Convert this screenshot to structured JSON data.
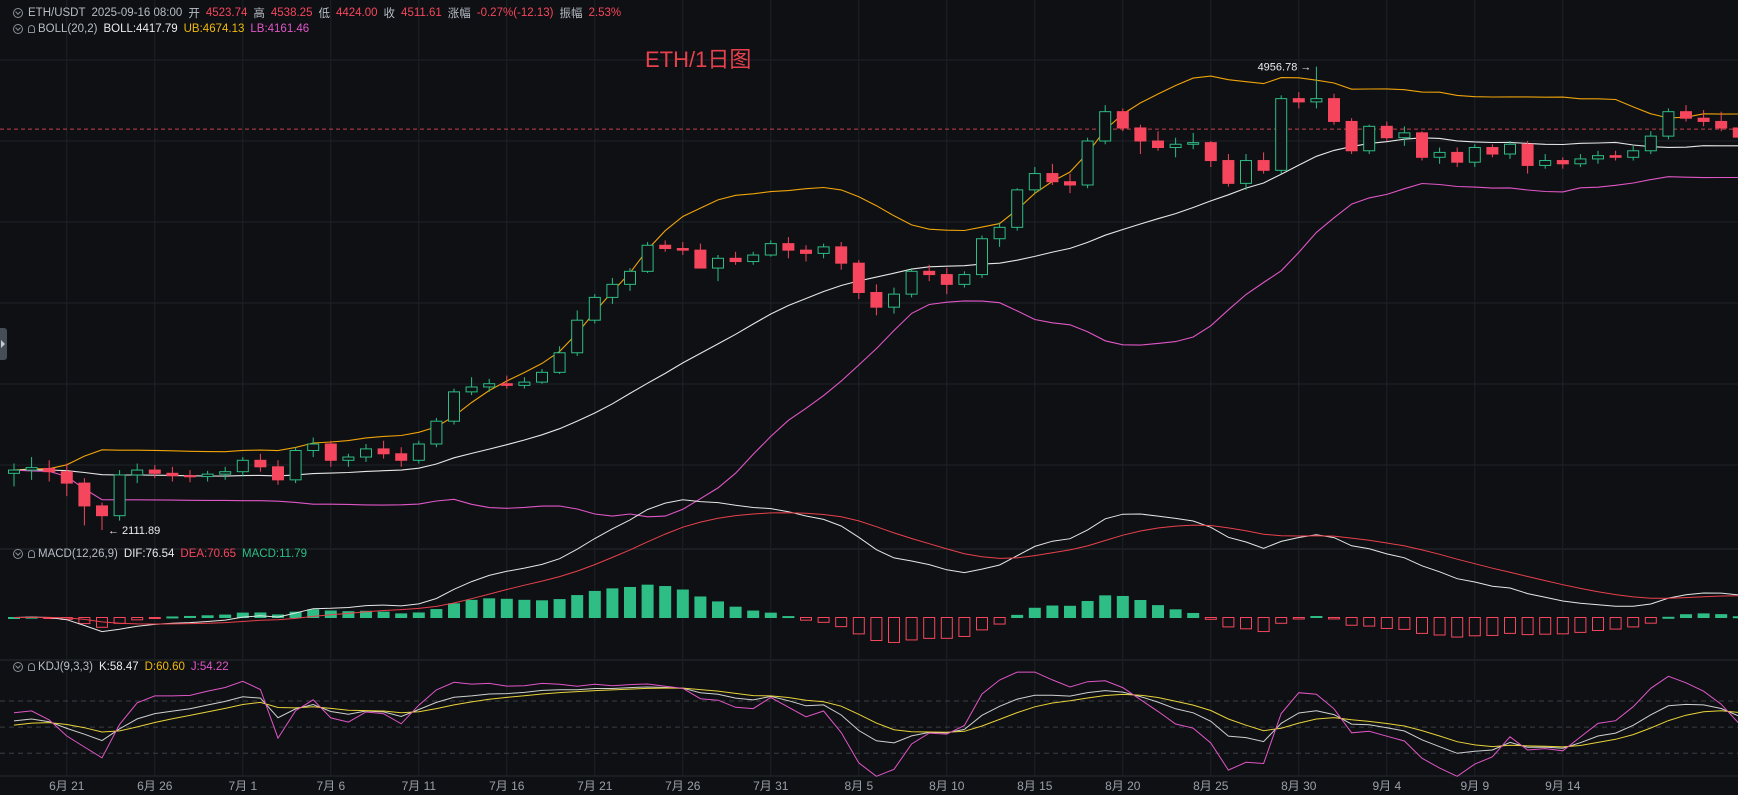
{
  "main": {
    "title": "ETH/1日图",
    "header": {
      "symbol": "ETH/USDT",
      "datetime": "2025-09-16 08:00",
      "open_label": "开",
      "open": "4523.74",
      "high_label": "高",
      "high": "4538.25",
      "low_label": "低",
      "low": "4424.00",
      "close_label": "收",
      "close": "4511.61",
      "change_label": "涨幅",
      "change": "-0.27%(-12.13)",
      "amplitude_label": "振幅",
      "amplitude": "2.53%"
    },
    "boll": {
      "name": "BOLL(20,2)",
      "boll": "BOLL:4417.79",
      "ub": "UB:4674.13",
      "lb": "LB:4161.46"
    },
    "macd": {
      "name": "MACD(12,26,9)",
      "dif": "DIF:76.54",
      "dea": "DEA:70.65",
      "macd": "MACD:11.79"
    },
    "kdj": {
      "name": "KDJ(9,3,3)",
      "k": "K:58.47",
      "d": "D:60.60",
      "j": "J:54.22"
    },
    "annotations": {
      "high_mark": "4956.78",
      "low_mark": "2111.89"
    }
  },
  "colors": {
    "up": "#2ebd85",
    "down": "#f6465d",
    "ub": "#f0a30a",
    "lb": "#e056c7",
    "mid": "#e6e6e6",
    "dif": "#e6e6e6",
    "dea": "#e8414d",
    "k": "#cfcfcf",
    "d": "#e8d23a",
    "j": "#e056c7"
  },
  "chart_data": {
    "type": "candlestick",
    "x_tick_labels": [
      "6月 21",
      "6月 26",
      "7月 1",
      "7月 6",
      "7月 11",
      "7月 16",
      "7月 21",
      "7月 26",
      "7月 31",
      "8月 5",
      "8月 10",
      "8月 15",
      "8月 20",
      "8月 25",
      "8月 30",
      "9月 4",
      "9月 9",
      "9月 14"
    ],
    "candles": [
      [
        2460,
        2520,
        2380,
        2480
      ],
      [
        2480,
        2560,
        2420,
        2495
      ],
      [
        2490,
        2540,
        2410,
        2470
      ],
      [
        2470,
        2520,
        2320,
        2400
      ],
      [
        2400,
        2430,
        2140,
        2260
      ],
      [
        2260,
        2280,
        2111.89,
        2200
      ],
      [
        2200,
        2480,
        2170,
        2450
      ],
      [
        2450,
        2520,
        2400,
        2480
      ],
      [
        2480,
        2510,
        2430,
        2460
      ],
      [
        2460,
        2500,
        2410,
        2445
      ],
      [
        2445,
        2480,
        2405,
        2440
      ],
      [
        2440,
        2475,
        2410,
        2455
      ],
      [
        2455,
        2500,
        2420,
        2470
      ],
      [
        2470,
        2560,
        2440,
        2540
      ],
      [
        2540,
        2580,
        2470,
        2500
      ],
      [
        2500,
        2540,
        2390,
        2420
      ],
      [
        2420,
        2620,
        2400,
        2600
      ],
      [
        2600,
        2680,
        2560,
        2640
      ],
      [
        2640,
        2660,
        2500,
        2540
      ],
      [
        2540,
        2580,
        2500,
        2560
      ],
      [
        2560,
        2640,
        2530,
        2610
      ],
      [
        2610,
        2660,
        2550,
        2580
      ],
      [
        2580,
        2620,
        2500,
        2540
      ],
      [
        2540,
        2660,
        2520,
        2640
      ],
      [
        2640,
        2800,
        2620,
        2780
      ],
      [
        2780,
        2980,
        2760,
        2960
      ],
      [
        2960,
        3050,
        2940,
        2990
      ],
      [
        2990,
        3040,
        2960,
        3010
      ],
      [
        3010,
        3060,
        2980,
        3000
      ],
      [
        3000,
        3050,
        2980,
        3020
      ],
      [
        3020,
        3100,
        3010,
        3080
      ],
      [
        3080,
        3240,
        3070,
        3200
      ],
      [
        3200,
        3460,
        3180,
        3400
      ],
      [
        3400,
        3560,
        3380,
        3540
      ],
      [
        3540,
        3660,
        3500,
        3620
      ],
      [
        3620,
        3720,
        3580,
        3700
      ],
      [
        3700,
        3880,
        3690,
        3860
      ],
      [
        3860,
        3890,
        3820,
        3840
      ],
      [
        3840,
        3880,
        3800,
        3830
      ],
      [
        3830,
        3870,
        3720,
        3720
      ],
      [
        3720,
        3800,
        3640,
        3780
      ],
      [
        3780,
        3820,
        3740,
        3760
      ],
      [
        3760,
        3820,
        3740,
        3800
      ],
      [
        3800,
        3890,
        3790,
        3870
      ],
      [
        3870,
        3910,
        3780,
        3830
      ],
      [
        3830,
        3860,
        3760,
        3810
      ],
      [
        3810,
        3870,
        3780,
        3850
      ],
      [
        3850,
        3880,
        3710,
        3750
      ],
      [
        3750,
        3770,
        3530,
        3570
      ],
      [
        3570,
        3620,
        3430,
        3480
      ],
      [
        3480,
        3600,
        3440,
        3560
      ],
      [
        3560,
        3720,
        3540,
        3700
      ],
      [
        3700,
        3740,
        3640,
        3680
      ],
      [
        3680,
        3720,
        3560,
        3620
      ],
      [
        3620,
        3700,
        3600,
        3680
      ],
      [
        3680,
        3920,
        3660,
        3900
      ],
      [
        3900,
        4000,
        3850,
        3970
      ],
      [
        3970,
        4210,
        3950,
        4200
      ],
      [
        4200,
        4340,
        4180,
        4300
      ],
      [
        4300,
        4360,
        4230,
        4250
      ],
      [
        4250,
        4300,
        4180,
        4230
      ],
      [
        4230,
        4520,
        4210,
        4500
      ],
      [
        4500,
        4720,
        4480,
        4680
      ],
      [
        4680,
        4700,
        4560,
        4580
      ],
      [
        4580,
        4600,
        4420,
        4500
      ],
      [
        4500,
        4560,
        4440,
        4460
      ],
      [
        4460,
        4520,
        4400,
        4480
      ],
      [
        4480,
        4550,
        4450,
        4490
      ],
      [
        4490,
        4500,
        4340,
        4380
      ],
      [
        4380,
        4420,
        4220,
        4240
      ],
      [
        4240,
        4420,
        4200,
        4380
      ],
      [
        4380,
        4430,
        4300,
        4320
      ],
      [
        4320,
        4780,
        4300,
        4760
      ],
      [
        4760,
        4800,
        4700,
        4740
      ],
      [
        4740,
        4956.78,
        4700,
        4760
      ],
      [
        4760,
        4790,
        4600,
        4620
      ],
      [
        4620,
        4640,
        4420,
        4440
      ],
      [
        4440,
        4600,
        4420,
        4590
      ],
      [
        4590,
        4620,
        4500,
        4520
      ],
      [
        4520,
        4590,
        4470,
        4550
      ],
      [
        4550,
        4560,
        4380,
        4400
      ],
      [
        4400,
        4460,
        4360,
        4430
      ],
      [
        4430,
        4460,
        4340,
        4370
      ],
      [
        4370,
        4480,
        4340,
        4460
      ],
      [
        4460,
        4480,
        4400,
        4420
      ],
      [
        4420,
        4500,
        4390,
        4480
      ],
      [
        4480,
        4500,
        4300,
        4350
      ],
      [
        4350,
        4420,
        4330,
        4380
      ],
      [
        4380,
        4400,
        4330,
        4360
      ],
      [
        4360,
        4420,
        4340,
        4390
      ],
      [
        4390,
        4440,
        4360,
        4410
      ],
      [
        4410,
        4440,
        4380,
        4400
      ],
      [
        4400,
        4470,
        4380,
        4440
      ],
      [
        4440,
        4560,
        4420,
        4530
      ],
      [
        4530,
        4700,
        4510,
        4680
      ],
      [
        4680,
        4720,
        4620,
        4640
      ],
      [
        4640,
        4690,
        4590,
        4620
      ],
      [
        4620,
        4680,
        4560,
        4580
      ],
      [
        4580,
        4610,
        4500,
        4523.74
      ],
      [
        4523.74,
        4538.25,
        4424,
        4511.61
      ]
    ],
    "y_range_main": [
      2020,
      5120
    ],
    "macd_range": [
      -105,
      175
    ],
    "kdj_range": [
      -5,
      118
    ]
  }
}
